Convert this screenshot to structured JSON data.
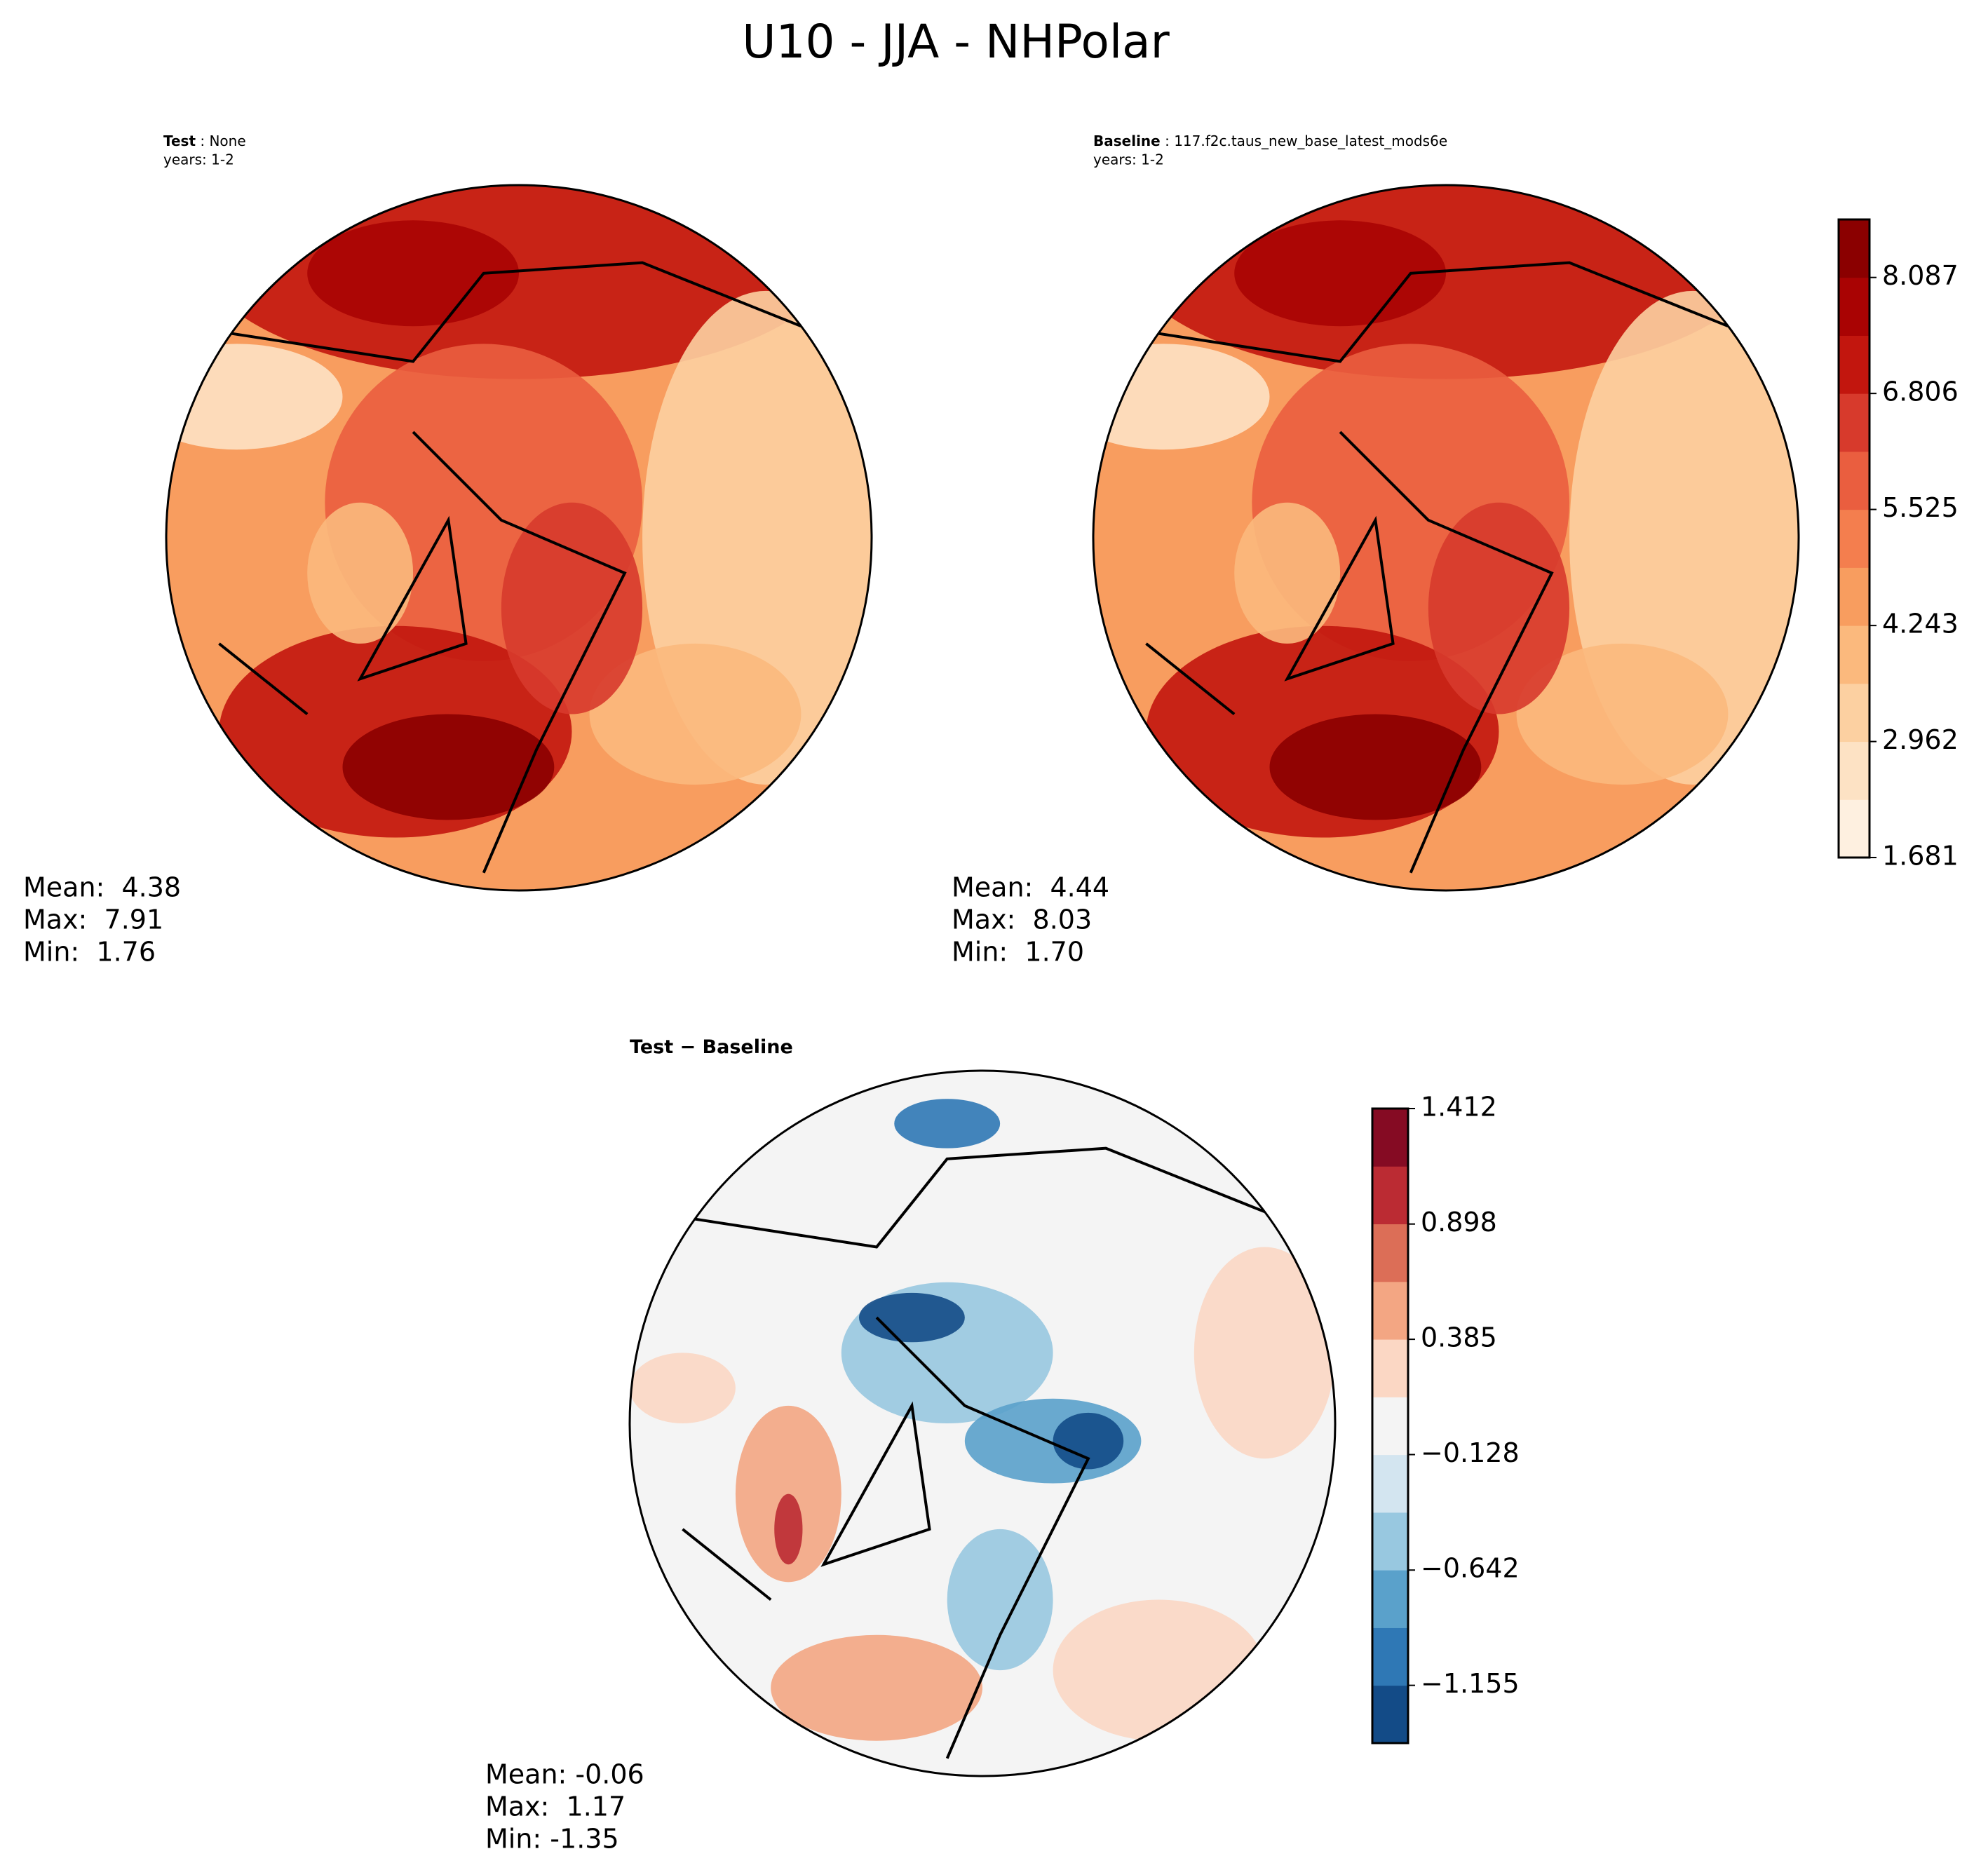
{
  "title": "U10 - JJA - NHPolar",
  "chart_data": [
    {
      "type": "map",
      "title_bold": "Test",
      "title_rest": " : None",
      "subtitle": "years: 1-2",
      "stats": [
        "Mean:  4.38",
        "Max:  7.91",
        "Min:  1.76"
      ]
    },
    {
      "type": "map",
      "title_bold": "Baseline",
      "title_rest": " : 117.f2c.taus_new_base_latest_mods6e",
      "subtitle": "years: 1-2",
      "stats": [
        "Mean:  4.44",
        "Max:  8.03",
        "Min:  1.70"
      ],
      "colorbar": {
        "ylim": [
          1.681,
          8.7275
        ],
        "yticks": [
          1.681,
          2.962,
          4.243,
          5.525,
          6.806,
          8.087
        ],
        "colors": [
          "#fef0e0",
          "#fde2c4",
          "#fcd0a1",
          "#fbb97d",
          "#f89d5f",
          "#f47e4e",
          "#ea5e3f",
          "#d73a2c",
          "#c2160e",
          "#a90303",
          "#8b0000"
        ]
      }
    },
    {
      "type": "map",
      "title_bold": "Test − Baseline",
      "stats": [
        "Mean: -0.06",
        "Max:  1.17",
        "Min: -1.35"
      ],
      "colorbar": {
        "ylim": [
          -1.412,
          1.412
        ],
        "yticks": [
          {
            "value": -1.155,
            "label": "−1.155"
          },
          {
            "value": -0.642,
            "label": "−0.642"
          },
          {
            "value": -0.128,
            "label": "−0.128"
          },
          0.385,
          0.898,
          1.412
        ],
        "colors": [
          "#134b87",
          "#2f78b5",
          "#5aa1cb",
          "#98c8e0",
          "#d3e5f0",
          "#f4f4f4",
          "#fbd7c4",
          "#f3a683",
          "#dc6e57",
          "#bb2b33",
          "#850b23"
        ]
      }
    }
  ]
}
